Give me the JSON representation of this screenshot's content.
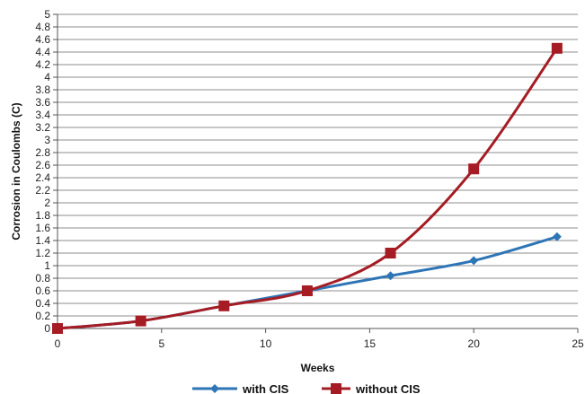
{
  "chart_data": {
    "type": "line",
    "title": "",
    "xlabel": "Weeks",
    "ylabel": "Corrosion in Coulombs (C)",
    "xlim": [
      0,
      25
    ],
    "ylim": [
      0,
      5
    ],
    "x_ticks": [
      0,
      5,
      10,
      15,
      20,
      25
    ],
    "x_tick_labels": [
      "0",
      "5",
      "10",
      "15",
      "20",
      "25"
    ],
    "y_ticks": [
      0,
      0.2,
      0.4,
      0.6,
      0.8,
      1,
      1.2,
      1.4,
      1.6,
      1.8,
      2,
      2.2,
      2.4,
      2.6,
      2.8,
      3,
      3.2,
      3.4,
      3.6,
      3.8,
      4,
      4.2,
      4.4,
      4.6,
      4.8,
      5
    ],
    "y_tick_labels": [
      "0",
      "0.2",
      "0.4",
      "0.6",
      "0.8",
      "1",
      "1.2",
      "1.4",
      "1.6",
      "1.8",
      "2",
      "2.2",
      "2.4",
      "2.6",
      "2.8",
      "3",
      "3.2",
      "3.4",
      "3.6",
      "3.8",
      "4",
      "4.2",
      "4.4",
      "4.6",
      "4.8",
      "5"
    ],
    "grid": "horizontal",
    "legend_position": "bottom",
    "series": [
      {
        "name": "with CIS",
        "color": "#2e75b6",
        "marker": "diamond",
        "x": [
          0,
          4,
          8,
          12,
          16,
          20,
          24
        ],
        "y": [
          0,
          0.12,
          0.36,
          0.6,
          0.84,
          1.08,
          1.46
        ]
      },
      {
        "name": "without CIS",
        "color": "#a51c24",
        "marker": "square",
        "x": [
          0,
          4,
          8,
          12,
          16,
          20,
          24
        ],
        "y": [
          0,
          0.12,
          0.36,
          0.6,
          1.2,
          2.54,
          4.46
        ]
      }
    ]
  }
}
